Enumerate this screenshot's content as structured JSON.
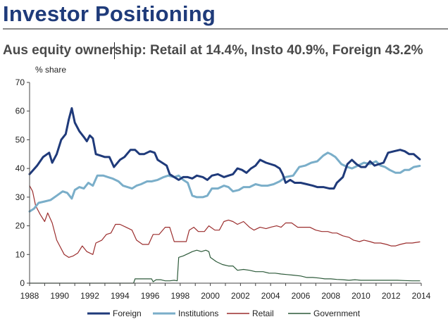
{
  "header": {
    "title": "Investor Positioning",
    "subtitle": "Aus equity ownership: Retail at 14.4%, Insto 40.9%, Foreign 43.2%"
  },
  "chart_data": {
    "type": "line",
    "title": "Aus equity ownership: Retail at 14.4%, Insto 40.9%, Foreign 43.2%",
    "ylabel": "% share",
    "xlabel": "",
    "xlim": [
      1988,
      2014
    ],
    "ylim": [
      0,
      70
    ],
    "x_ticks": [
      1988,
      1990,
      1992,
      1994,
      1996,
      1998,
      2000,
      2002,
      2004,
      2006,
      2008,
      2010,
      2012,
      2014
    ],
    "y_ticks": [
      0,
      10,
      20,
      30,
      40,
      50,
      60,
      70
    ],
    "grid": false,
    "legend_position": "bottom",
    "series": [
      {
        "name": "Foreign",
        "color": "#1f3a7a",
        "width": 3,
        "points": [
          [
            1988.0,
            38.0
          ],
          [
            1988.5,
            41.0
          ],
          [
            1988.9,
            44.0
          ],
          [
            1989.3,
            45.5
          ],
          [
            1989.5,
            42.0
          ],
          [
            1989.8,
            45.0
          ],
          [
            1990.1,
            50.0
          ],
          [
            1990.4,
            52.0
          ],
          [
            1990.6,
            57.0
          ],
          [
            1990.8,
            61.0
          ],
          [
            1991.0,
            56.0
          ],
          [
            1991.3,
            53.0
          ],
          [
            1991.6,
            51.0
          ],
          [
            1991.8,
            49.5
          ],
          [
            1992.0,
            51.5
          ],
          [
            1992.2,
            50.5
          ],
          [
            1992.4,
            45.0
          ],
          [
            1992.7,
            44.5
          ],
          [
            1993.0,
            44.0
          ],
          [
            1993.3,
            44.0
          ],
          [
            1993.6,
            40.5
          ],
          [
            1994.0,
            43.0
          ],
          [
            1994.3,
            44.0
          ],
          [
            1994.7,
            46.5
          ],
          [
            1995.0,
            46.5
          ],
          [
            1995.3,
            45.0
          ],
          [
            1995.6,
            45.0
          ],
          [
            1996.0,
            46.0
          ],
          [
            1996.3,
            45.5
          ],
          [
            1996.5,
            43.0
          ],
          [
            1996.8,
            42.0
          ],
          [
            1997.1,
            41.0
          ],
          [
            1997.3,
            38.0
          ],
          [
            1997.6,
            37.0
          ],
          [
            1997.9,
            36.0
          ],
          [
            1998.2,
            37.0
          ],
          [
            1998.5,
            37.0
          ],
          [
            1998.8,
            36.5
          ],
          [
            1999.1,
            37.5
          ],
          [
            1999.5,
            37.0
          ],
          [
            1999.8,
            36.0
          ],
          [
            2000.1,
            37.5
          ],
          [
            2000.5,
            38.0
          ],
          [
            2000.9,
            37.0
          ],
          [
            2001.2,
            37.5
          ],
          [
            2001.5,
            38.0
          ],
          [
            2001.8,
            40.0
          ],
          [
            2002.1,
            39.5
          ],
          [
            2002.4,
            38.5
          ],
          [
            2002.7,
            40.0
          ],
          [
            2003.0,
            41.0
          ],
          [
            2003.3,
            43.0
          ],
          [
            2003.7,
            42.0
          ],
          [
            2004.0,
            41.5
          ],
          [
            2004.3,
            41.0
          ],
          [
            2004.6,
            40.0
          ],
          [
            2004.8,
            38.0
          ],
          [
            2005.0,
            35.0
          ],
          [
            2005.3,
            36.0
          ],
          [
            2005.6,
            35.0
          ],
          [
            2006.0,
            35.0
          ],
          [
            2006.4,
            34.5
          ],
          [
            2006.8,
            34.0
          ],
          [
            2007.1,
            33.5
          ],
          [
            2007.5,
            33.5
          ],
          [
            2007.9,
            33.0
          ],
          [
            2008.2,
            33.0
          ],
          [
            2008.4,
            35.0
          ],
          [
            2008.8,
            37.0
          ],
          [
            2009.1,
            41.5
          ],
          [
            2009.4,
            43.0
          ],
          [
            2009.7,
            41.5
          ],
          [
            2010.0,
            40.5
          ],
          [
            2010.3,
            40.5
          ],
          [
            2010.6,
            42.5
          ],
          [
            2010.9,
            41.0
          ],
          [
            2011.2,
            41.5
          ],
          [
            2011.5,
            42.0
          ],
          [
            2011.8,
            45.5
          ],
          [
            2012.2,
            46.0
          ],
          [
            2012.6,
            46.5
          ],
          [
            2012.9,
            46.0
          ],
          [
            2013.2,
            45.0
          ],
          [
            2013.5,
            45.0
          ],
          [
            2013.9,
            43.2
          ]
        ]
      },
      {
        "name": "Institutions",
        "color": "#7aaec9",
        "width": 3,
        "points": [
          [
            1988.0,
            25.0
          ],
          [
            1988.3,
            26.0
          ],
          [
            1988.6,
            28.0
          ],
          [
            1989.0,
            28.5
          ],
          [
            1989.4,
            29.0
          ],
          [
            1989.8,
            30.5
          ],
          [
            1990.2,
            32.0
          ],
          [
            1990.5,
            31.5
          ],
          [
            1990.8,
            29.5
          ],
          [
            1991.0,
            32.5
          ],
          [
            1991.3,
            33.5
          ],
          [
            1991.6,
            33.0
          ],
          [
            1991.9,
            35.0
          ],
          [
            1992.2,
            34.0
          ],
          [
            1992.5,
            37.5
          ],
          [
            1992.9,
            37.5
          ],
          [
            1993.2,
            37.0
          ],
          [
            1993.5,
            36.5
          ],
          [
            1993.9,
            35.5
          ],
          [
            1994.2,
            34.0
          ],
          [
            1994.5,
            33.5
          ],
          [
            1994.8,
            33.0
          ],
          [
            1995.1,
            34.0
          ],
          [
            1995.4,
            34.5
          ],
          [
            1995.8,
            35.5
          ],
          [
            1996.1,
            35.5
          ],
          [
            1996.5,
            36.0
          ],
          [
            1996.9,
            37.0
          ],
          [
            1997.2,
            37.5
          ],
          [
            1997.6,
            37.0
          ],
          [
            1997.9,
            37.5
          ],
          [
            1998.2,
            36.0
          ],
          [
            1998.5,
            35.0
          ],
          [
            1998.8,
            30.5
          ],
          [
            1999.1,
            30.0
          ],
          [
            1999.5,
            30.0
          ],
          [
            1999.8,
            30.5
          ],
          [
            2000.1,
            33.0
          ],
          [
            2000.5,
            33.0
          ],
          [
            2000.9,
            34.0
          ],
          [
            2001.2,
            33.5
          ],
          [
            2001.5,
            32.0
          ],
          [
            2001.9,
            32.5
          ],
          [
            2002.2,
            33.5
          ],
          [
            2002.6,
            33.5
          ],
          [
            2003.0,
            34.5
          ],
          [
            2003.4,
            34.0
          ],
          [
            2003.8,
            34.0
          ],
          [
            2004.2,
            34.5
          ],
          [
            2004.6,
            35.5
          ],
          [
            2005.0,
            37.0
          ],
          [
            2005.5,
            37.5
          ],
          [
            2005.9,
            40.5
          ],
          [
            2006.3,
            41.0
          ],
          [
            2006.7,
            42.0
          ],
          [
            2007.1,
            42.5
          ],
          [
            2007.5,
            44.5
          ],
          [
            2007.8,
            45.5
          ],
          [
            2008.0,
            45.0
          ],
          [
            2008.3,
            44.0
          ],
          [
            2008.7,
            41.5
          ],
          [
            2009.1,
            40.5
          ],
          [
            2009.4,
            40.0
          ],
          [
            2009.8,
            41.0
          ],
          [
            2010.2,
            42.0
          ],
          [
            2010.6,
            41.5
          ],
          [
            2011.0,
            42.5
          ],
          [
            2011.3,
            41.0
          ],
          [
            2011.6,
            40.5
          ],
          [
            2011.9,
            39.5
          ],
          [
            2012.3,
            38.5
          ],
          [
            2012.6,
            38.5
          ],
          [
            2012.9,
            39.5
          ],
          [
            2013.2,
            39.5
          ],
          [
            2013.5,
            40.5
          ],
          [
            2013.9,
            40.9
          ]
        ]
      },
      {
        "name": "Retail",
        "color": "#9b2d2d",
        "width": 1.2,
        "points": [
          [
            1988.0,
            34.0
          ],
          [
            1988.2,
            32.0
          ],
          [
            1988.4,
            27.0
          ],
          [
            1988.7,
            24.0
          ],
          [
            1989.0,
            21.5
          ],
          [
            1989.2,
            24.5
          ],
          [
            1989.5,
            21.0
          ],
          [
            1989.8,
            15.0
          ],
          [
            1990.0,
            13.0
          ],
          [
            1990.3,
            10.0
          ],
          [
            1990.6,
            9.0
          ],
          [
            1990.9,
            9.5
          ],
          [
            1991.2,
            10.5
          ],
          [
            1991.5,
            13.0
          ],
          [
            1991.8,
            11.0
          ],
          [
            1992.2,
            10.0
          ],
          [
            1992.4,
            14.0
          ],
          [
            1992.8,
            15.0
          ],
          [
            1993.1,
            17.0
          ],
          [
            1993.4,
            17.5
          ],
          [
            1993.7,
            20.5
          ],
          [
            1994.0,
            20.5
          ],
          [
            1994.4,
            19.5
          ],
          [
            1994.8,
            18.5
          ],
          [
            1995.1,
            15.0
          ],
          [
            1995.5,
            13.5
          ],
          [
            1995.9,
            13.5
          ],
          [
            1996.2,
            17.0
          ],
          [
            1996.6,
            17.0
          ],
          [
            1997.0,
            19.5
          ],
          [
            1997.3,
            19.5
          ],
          [
            1997.6,
            14.5
          ],
          [
            1998.0,
            14.5
          ],
          [
            1998.4,
            14.5
          ],
          [
            1998.6,
            18.5
          ],
          [
            1998.9,
            19.5
          ],
          [
            1999.2,
            18.0
          ],
          [
            1999.6,
            18.0
          ],
          [
            1999.9,
            20.0
          ],
          [
            2000.3,
            18.5
          ],
          [
            2000.6,
            18.5
          ],
          [
            2000.9,
            21.5
          ],
          [
            2001.2,
            22.0
          ],
          [
            2001.5,
            21.5
          ],
          [
            2001.8,
            20.5
          ],
          [
            2002.2,
            21.5
          ],
          [
            2002.6,
            19.5
          ],
          [
            2002.9,
            18.5
          ],
          [
            2003.3,
            19.5
          ],
          [
            2003.7,
            19.0
          ],
          [
            2004.0,
            19.5
          ],
          [
            2004.4,
            20.0
          ],
          [
            2004.7,
            19.5
          ],
          [
            2005.0,
            21.0
          ],
          [
            2005.4,
            21.0
          ],
          [
            2005.8,
            19.5
          ],
          [
            2006.2,
            19.5
          ],
          [
            2006.6,
            19.5
          ],
          [
            2007.0,
            18.5
          ],
          [
            2007.4,
            18.0
          ],
          [
            2007.8,
            18.0
          ],
          [
            2008.1,
            17.5
          ],
          [
            2008.4,
            17.5
          ],
          [
            2008.8,
            16.5
          ],
          [
            2009.2,
            16.0
          ],
          [
            2009.5,
            15.0
          ],
          [
            2009.9,
            14.5
          ],
          [
            2010.2,
            15.0
          ],
          [
            2010.6,
            14.5
          ],
          [
            2010.9,
            14.0
          ],
          [
            2011.3,
            14.0
          ],
          [
            2011.7,
            13.5
          ],
          [
            2012.0,
            13.0
          ],
          [
            2012.3,
            13.0
          ],
          [
            2012.6,
            13.5
          ],
          [
            2013.0,
            14.0
          ],
          [
            2013.4,
            14.0
          ],
          [
            2013.9,
            14.4
          ]
        ]
      },
      {
        "name": "Government",
        "color": "#2d5a3a",
        "width": 1.2,
        "points": [
          [
            1988.0,
            0.0
          ],
          [
            1994.9,
            0.0
          ],
          [
            1995.0,
            1.5
          ],
          [
            1995.8,
            1.5
          ],
          [
            1996.1,
            1.5
          ],
          [
            1996.2,
            0.5
          ],
          [
            1996.4,
            1.2
          ],
          [
            1996.7,
            1.2
          ],
          [
            1997.0,
            0.8
          ],
          [
            1997.3,
            0.8
          ],
          [
            1997.6,
            1.0
          ],
          [
            1997.8,
            0.8
          ],
          [
            1997.9,
            9.0
          ],
          [
            1998.2,
            9.5
          ],
          [
            1998.6,
            10.5
          ],
          [
            1998.8,
            11.0
          ],
          [
            1999.1,
            11.5
          ],
          [
            1999.4,
            11.0
          ],
          [
            1999.7,
            11.5
          ],
          [
            1999.9,
            11.0
          ],
          [
            2000.0,
            9.0
          ],
          [
            2000.4,
            7.5
          ],
          [
            2000.8,
            6.5
          ],
          [
            2001.2,
            6.0
          ],
          [
            2001.5,
            6.0
          ],
          [
            2001.8,
            4.5
          ],
          [
            2002.2,
            4.8
          ],
          [
            2002.6,
            4.5
          ],
          [
            2003.0,
            4.0
          ],
          [
            2003.5,
            4.0
          ],
          [
            2003.9,
            3.5
          ],
          [
            2004.3,
            3.5
          ],
          [
            2004.7,
            3.2
          ],
          [
            2005.1,
            3.0
          ],
          [
            2005.5,
            2.8
          ],
          [
            2006.0,
            2.5
          ],
          [
            2006.4,
            2.0
          ],
          [
            2006.8,
            2.0
          ],
          [
            2007.2,
            1.8
          ],
          [
            2007.6,
            1.5
          ],
          [
            2008.0,
            1.5
          ],
          [
            2008.4,
            1.3
          ],
          [
            2008.8,
            1.2
          ],
          [
            2009.2,
            1.0
          ],
          [
            2009.6,
            1.2
          ],
          [
            2010.0,
            1.0
          ],
          [
            2010.6,
            1.0
          ],
          [
            2011.2,
            1.0
          ],
          [
            2011.8,
            1.0
          ],
          [
            2012.4,
            1.0
          ],
          [
            2012.9,
            0.9
          ],
          [
            2013.4,
            0.8
          ],
          [
            2013.9,
            0.8
          ]
        ]
      }
    ]
  }
}
